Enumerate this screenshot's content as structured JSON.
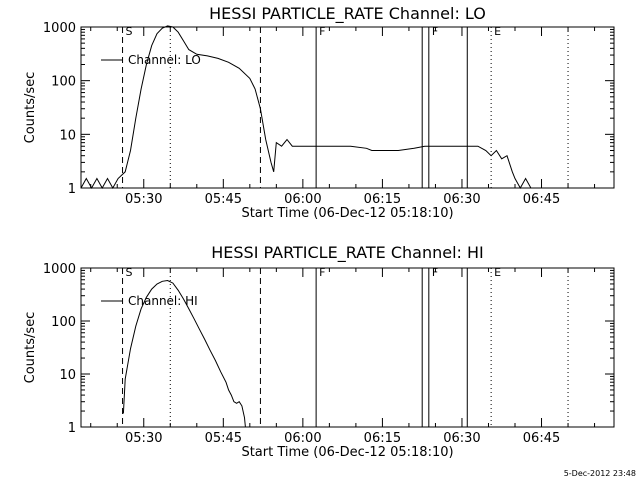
{
  "stamp": "5-Dec-2012 23:48",
  "chart_data": [
    {
      "type": "line",
      "title": "HESSI PARTICLE_RATE Channel: LO",
      "xlabel": "Start Time (06-Dec-12 05:18:10)",
      "ylabel": "Counts/sec",
      "yscale": "log",
      "xlim": [
        "05:18:10",
        "06:58:40"
      ],
      "ylim": [
        1,
        1000
      ],
      "xticks": [
        "05:30",
        "05:45",
        "06:00",
        "06:15",
        "06:30",
        "06:45"
      ],
      "yticks": [
        "1",
        "10",
        "100",
        "1000"
      ],
      "legend": {
        "label": "Channel: LO",
        "placement": "top-left"
      },
      "markers": [
        {
          "time": "05:26:00",
          "style": "dashed",
          "label": "S"
        },
        {
          "time": "05:35:00",
          "style": "dotted",
          "label": ""
        },
        {
          "time": "05:52:00",
          "style": "dashed",
          "label": ""
        },
        {
          "time": "06:02:30",
          "style": "solid",
          "label": "F"
        },
        {
          "time": "06:22:30",
          "style": "solid",
          "label": ""
        },
        {
          "time": "06:23:45",
          "style": "solid",
          "label": "F"
        },
        {
          "time": "06:31:00",
          "style": "solid",
          "label": ""
        },
        {
          "time": "06:35:30",
          "style": "dotted",
          "label": "E"
        },
        {
          "time": "06:50:00",
          "style": "dotted",
          "label": ""
        }
      ],
      "series": [
        {
          "x": [
            "05:18:10",
            "05:19:10",
            "05:20:10",
            "05:21:10",
            "05:22:10",
            "05:23:10",
            "05:24:10",
            "05:25:10",
            "05:26:30",
            "05:27:30",
            "05:28:30",
            "05:29:30",
            "05:30:30",
            "05:31:30",
            "05:32:30",
            "05:33:30",
            "05:34:30",
            "05:35:30",
            "05:36:30",
            "05:37:30",
            "05:38:30",
            "05:40:00",
            "05:42:00",
            "05:44:00",
            "05:46:00",
            "05:48:00",
            "05:50:00",
            "05:51:00",
            "05:52:00",
            "05:53:00",
            "05:54:00",
            "05:54:30",
            "05:55:00",
            "05:56:00",
            "05:57:00",
            "05:58:00",
            "06:00:00",
            "06:03:00",
            "06:06:00",
            "06:09:00",
            "06:12:00",
            "06:13:00",
            "06:15:00",
            "06:18:00",
            "06:21:00",
            "06:23:00",
            "06:25:00",
            "06:27:00",
            "06:29:00",
            "06:31:00",
            "06:33:00",
            "06:34:30",
            "06:35:30",
            "06:36:30",
            "06:37:30",
            "06:38:30",
            "06:39:30",
            "06:40:00",
            "06:41:00",
            "06:42:00",
            "06:43:00"
          ],
          "y": [
            1.0,
            1.5,
            1.0,
            1.5,
            1.0,
            1.5,
            1.0,
            1.5,
            2.0,
            5,
            20,
            70,
            200,
            450,
            750,
            950,
            1050,
            1000,
            800,
            550,
            380,
            310,
            290,
            260,
            220,
            170,
            110,
            70,
            30,
            8,
            3,
            2,
            7,
            6,
            8,
            6,
            6,
            6,
            6,
            6,
            5.5,
            5,
            5,
            5,
            5.5,
            6,
            6,
            6,
            6,
            6,
            6,
            5,
            4,
            5,
            3.5,
            4,
            2,
            1.5,
            1.0,
            1.5,
            1.0
          ]
        }
      ]
    },
    {
      "type": "line",
      "title": "HESSI PARTICLE_RATE Channel: HI",
      "xlabel": "Start Time (06-Dec-12 05:18:10)",
      "ylabel": "Counts/sec",
      "yscale": "log",
      "xlim": [
        "05:18:10",
        "06:58:40"
      ],
      "ylim": [
        1,
        1000
      ],
      "xticks": [
        "05:30",
        "05:45",
        "06:00",
        "06:15",
        "06:30",
        "06:45"
      ],
      "yticks": [
        "1",
        "10",
        "100",
        "1000"
      ],
      "legend": {
        "label": "Channel: HI",
        "placement": "top-left"
      },
      "markers": [
        {
          "time": "05:26:00",
          "style": "dashed",
          "label": "S"
        },
        {
          "time": "05:35:00",
          "style": "dotted",
          "label": ""
        },
        {
          "time": "05:52:00",
          "style": "dashed",
          "label": ""
        },
        {
          "time": "06:02:30",
          "style": "solid",
          "label": "F"
        },
        {
          "time": "06:22:30",
          "style": "solid",
          "label": ""
        },
        {
          "time": "06:23:45",
          "style": "solid",
          "label": "F"
        },
        {
          "time": "06:31:00",
          "style": "solid",
          "label": ""
        },
        {
          "time": "06:35:30",
          "style": "dotted",
          "label": "E"
        },
        {
          "time": "06:50:00",
          "style": "dotted",
          "label": ""
        }
      ],
      "series": [
        {
          "x": [
            "05:26:10",
            "05:26:30",
            "05:27:30",
            "05:28:30",
            "05:29:30",
            "05:30:30",
            "05:31:30",
            "05:32:30",
            "05:33:30",
            "05:34:30",
            "05:35:30",
            "05:36:30",
            "05:37:30",
            "05:38:30",
            "05:39:30",
            "05:40:30",
            "05:41:30",
            "05:42:30",
            "05:43:30",
            "05:44:30",
            "05:45:30",
            "05:46:00",
            "05:46:30",
            "05:47:00",
            "05:47:30",
            "05:48:00",
            "05:48:30",
            "05:49:00",
            "05:49:10"
          ],
          "y": [
            1.8,
            8,
            30,
            80,
            170,
            280,
            400,
            500,
            560,
            580,
            520,
            380,
            260,
            170,
            110,
            70,
            45,
            28,
            18,
            11,
            7,
            5,
            4,
            3,
            2.8,
            3,
            2.5,
            1.5,
            1.0
          ]
        }
      ]
    }
  ]
}
